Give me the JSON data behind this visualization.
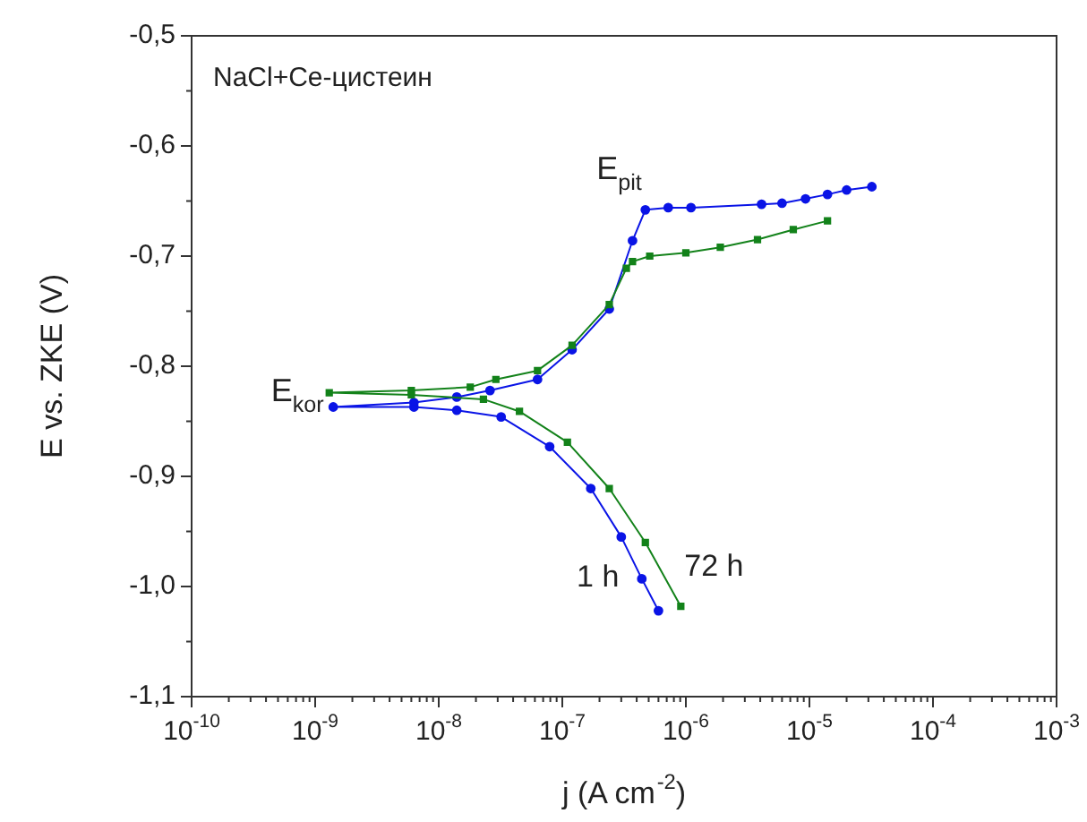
{
  "chart_data": {
    "type": "line",
    "xlabel": "j (A cm$^{-2}$)",
    "ylabel": "E vs. ZKE (V)",
    "log": "x",
    "grid": false,
    "legend": false,
    "xlim": [
      1e-10,
      0.001
    ],
    "xticks": [
      {
        "value": 1e-10,
        "label": "10$^{-10}$"
      },
      {
        "value": 1e-09,
        "label": "10$^{-9}$"
      },
      {
        "value": 1e-08,
        "label": "10$^{-8}$"
      },
      {
        "value": 1e-07,
        "label": "10$^{-7}$"
      },
      {
        "value": 1e-06,
        "label": "10$^{-6}$"
      },
      {
        "value": 1e-05,
        "label": "10$^{-5}$"
      },
      {
        "value": 0.0001,
        "label": "10$^{-4}$"
      },
      {
        "value": 0.001,
        "label": "10$^{-3}$"
      }
    ],
    "ylim": [
      -1.1,
      -0.5
    ],
    "yticks": [
      {
        "value": -1.1,
        "label": "-1,1"
      },
      {
        "value": -1.0,
        "label": "-1,0"
      },
      {
        "value": -0.9,
        "label": "-0,9"
      },
      {
        "value": -0.8,
        "label": "-0,8"
      },
      {
        "value": -0.7,
        "label": "-0,7"
      },
      {
        "value": -0.6,
        "label": "-0,6"
      },
      {
        "value": -0.5,
        "label": "-0,5"
      }
    ],
    "series": [
      {
        "name": "1 h",
        "color": "#0a14e6",
        "marker": "circle",
        "x": [
          6e-07,
          4.4e-07,
          3e-07,
          1.7e-07,
          7.9e-08,
          3.2e-08,
          1.4e-08,
          6.3e-09,
          1.4e-09,
          6.3e-09,
          1.4e-08,
          2.6e-08,
          6.3e-08,
          1.2e-07,
          2.4e-07,
          3.7e-07,
          4.7e-07,
          7.2e-07,
          1.1e-06,
          4.1e-06,
          6e-06,
          9.3e-06,
          1.4e-05,
          2e-05,
          3.2e-05
        ],
        "values": [
          -1.022,
          -0.993,
          -0.955,
          -0.911,
          -0.873,
          -0.846,
          -0.84,
          -0.837,
          -0.837,
          -0.833,
          -0.828,
          -0.822,
          -0.812,
          -0.785,
          -0.748,
          -0.686,
          -0.658,
          -0.656,
          -0.656,
          -0.653,
          -0.652,
          -0.648,
          -0.644,
          -0.64,
          -0.637
        ]
      },
      {
        "name": "72 h",
        "color": "#13821a",
        "marker": "square",
        "x": [
          9.1e-07,
          4.7e-07,
          2.4e-07,
          1.1e-07,
          4.5e-08,
          2.3e-08,
          6e-09,
          1.3e-09,
          6e-09,
          1.8e-08,
          2.9e-08,
          6.3e-08,
          1.2e-07,
          2.4e-07,
          3.3e-07,
          3.7e-07,
          5.1e-07,
          1e-06,
          1.9e-06,
          3.8e-06,
          7.4e-06,
          1.4e-05
        ],
        "values": [
          -1.018,
          -0.96,
          -0.911,
          -0.869,
          -0.841,
          -0.83,
          -0.826,
          -0.824,
          -0.822,
          -0.819,
          -0.812,
          -0.804,
          -0.781,
          -0.744,
          -0.711,
          -0.705,
          -0.7,
          -0.697,
          -0.692,
          -0.685,
          -0.676,
          -0.668
        ]
      }
    ],
    "annotations": [
      "NaCl+Ce-цистеин",
      {
        "text": "E$_{pit}$",
        "x": 4.7e-07,
        "y": -0.658
      },
      {
        "text": "E$_{kor}$",
        "x": 1.3e-09,
        "y": -0.824
      }
    ]
  }
}
